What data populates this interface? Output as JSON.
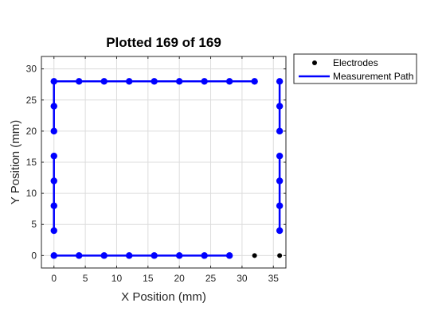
{
  "chart_data": {
    "type": "scatter",
    "title": "Plotted 169 of 169",
    "xlabel": "X Position (mm)",
    "ylabel": "Y Position (mm)",
    "xlim": [
      -2,
      37
    ],
    "ylim": [
      -2,
      32
    ],
    "xticks": [
      0,
      5,
      10,
      15,
      20,
      25,
      30,
      35
    ],
    "yticks": [
      0,
      5,
      10,
      15,
      20,
      25,
      30
    ],
    "grid": true,
    "legend_position": "outside-top-right",
    "series": [
      {
        "name": "Electrodes",
        "kind": "markers",
        "color": "#000000",
        "points": [
          [
            32,
            0
          ],
          [
            36,
            0
          ]
        ]
      },
      {
        "name": "Measurement Path",
        "kind": "line-markers",
        "color": "#0000ff",
        "segments": [
          [
            [
              0,
              0
            ],
            [
              4,
              0
            ],
            [
              8,
              0
            ],
            [
              12,
              0
            ],
            [
              16,
              0
            ],
            [
              20,
              0
            ],
            [
              24,
              0
            ],
            [
              28,
              0
            ]
          ],
          [
            [
              0,
              4
            ],
            [
              0,
              8
            ],
            [
              0,
              12
            ],
            [
              0,
              16
            ]
          ],
          [
            [
              0,
              20
            ],
            [
              0,
              24
            ],
            [
              0,
              28
            ],
            [
              4,
              28
            ],
            [
              8,
              28
            ],
            [
              12,
              28
            ],
            [
              16,
              28
            ],
            [
              20,
              28
            ],
            [
              24,
              28
            ],
            [
              28,
              28
            ],
            [
              32,
              28
            ]
          ],
          [
            [
              36,
              4
            ],
            [
              36,
              8
            ],
            [
              36,
              12
            ],
            [
              36,
              16
            ]
          ],
          [
            [
              36,
              20
            ],
            [
              36,
              24
            ],
            [
              36,
              28
            ]
          ]
        ]
      }
    ]
  }
}
